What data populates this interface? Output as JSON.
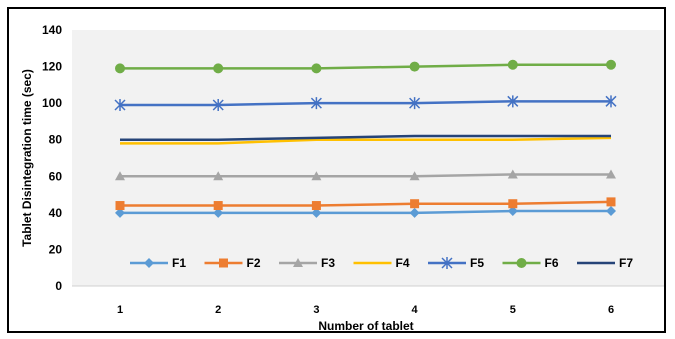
{
  "chart_data": {
    "type": "line",
    "title": "",
    "xlabel": "Number of tablet",
    "ylabel": "Tablet Disintegration time (sec)",
    "x": [
      1,
      2,
      3,
      4,
      5,
      6
    ],
    "ylim": [
      0,
      140
    ],
    "yticks": [
      0,
      20,
      40,
      60,
      80,
      100,
      120,
      140
    ],
    "grid": false,
    "legend_position": "bottom-inside",
    "series": [
      {
        "name": "F1",
        "color": "#5B9BD5",
        "marker": "diamond",
        "values": [
          40,
          40,
          40,
          40,
          41,
          41
        ]
      },
      {
        "name": "F2",
        "color": "#ED7D31",
        "marker": "square",
        "values": [
          44,
          44,
          44,
          45,
          45,
          46
        ]
      },
      {
        "name": "F3",
        "color": "#A5A5A5",
        "marker": "triangle",
        "values": [
          60,
          60,
          60,
          60,
          61,
          61
        ]
      },
      {
        "name": "F4",
        "color": "#FFC000",
        "marker": "none",
        "values": [
          78,
          78,
          80,
          80,
          80,
          81
        ]
      },
      {
        "name": "F5",
        "color": "#4472C4",
        "marker": "star",
        "values": [
          99,
          99,
          100,
          100,
          101,
          101
        ]
      },
      {
        "name": "F6",
        "color": "#70AD47",
        "marker": "circle",
        "values": [
          119,
          119,
          119,
          120,
          121,
          121
        ]
      },
      {
        "name": "F7",
        "color": "#264478",
        "marker": "none",
        "values": [
          80,
          80,
          81,
          82,
          82,
          82
        ]
      }
    ]
  }
}
